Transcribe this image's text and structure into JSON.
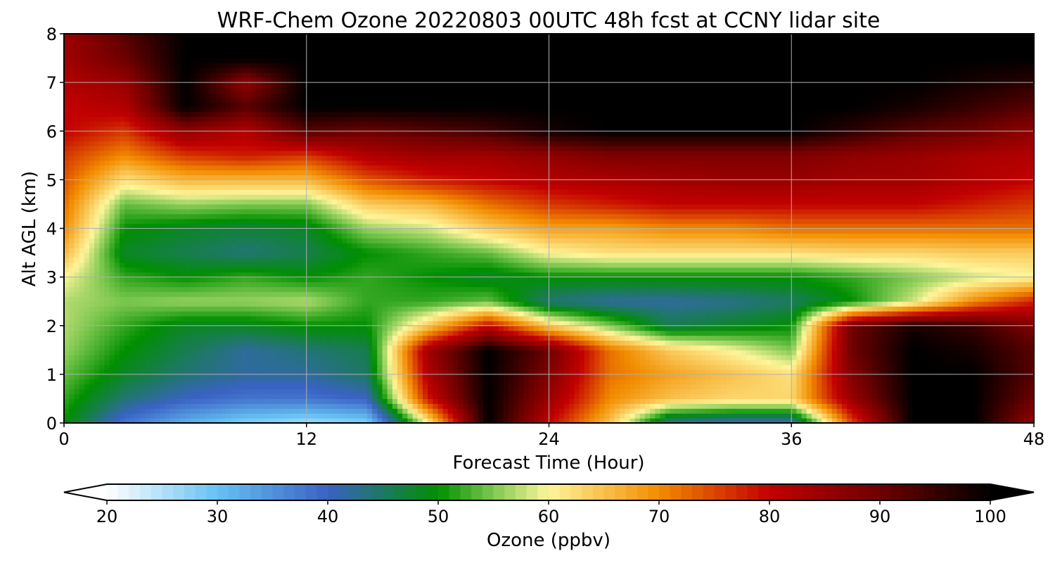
{
  "chart_data": {
    "type": "heatmap",
    "title": "WRF-Chem Ozone  20220803 00UTC 48h fcst at CCNY lidar site",
    "xlabel": "Forecast Time (Hour)",
    "ylabel": "Alt AGL (km)",
    "xlim": [
      0,
      48
    ],
    "ylim": [
      0,
      8
    ],
    "xticks": [
      0,
      12,
      24,
      36,
      48
    ],
    "yticks": [
      0,
      1,
      2,
      3,
      4,
      5,
      6,
      7,
      8
    ],
    "grid": true,
    "value_units": "ppbv",
    "x": [
      0,
      3,
      6,
      9,
      12,
      15,
      18,
      21,
      24,
      27,
      30,
      33,
      36,
      39,
      42,
      45,
      48
    ],
    "y": [
      0,
      0.5,
      1,
      1.5,
      2,
      2.5,
      3,
      3.5,
      4,
      4.5,
      5,
      5.5,
      6,
      6.5,
      7,
      7.5,
      8
    ],
    "z": [
      [
        50,
        38,
        32,
        28,
        26,
        28,
        60,
        100,
        80,
        65,
        42,
        40,
        40,
        75,
        100,
        100,
        85
      ],
      [
        52,
        44,
        40,
        38,
        38,
        40,
        78,
        100,
        85,
        70,
        65,
        63,
        63,
        85,
        100,
        100,
        90
      ],
      [
        54,
        48,
        44,
        42,
        42,
        45,
        82,
        100,
        88,
        72,
        68,
        65,
        62,
        88,
        100,
        100,
        92
      ],
      [
        56,
        50,
        46,
        42,
        44,
        46,
        84,
        100,
        90,
        72,
        64,
        60,
        55,
        90,
        100,
        98,
        92
      ],
      [
        57,
        52,
        48,
        48,
        50,
        50,
        64,
        80,
        64,
        55,
        46,
        48,
        50,
        90,
        98,
        95,
        88
      ],
      [
        57,
        55,
        56,
        56,
        57,
        52,
        52,
        54,
        44,
        42,
        42,
        43,
        45,
        50,
        58,
        70,
        78
      ],
      [
        60,
        52,
        50,
        52,
        50,
        52,
        50,
        48,
        50,
        50,
        50,
        50,
        50,
        52,
        55,
        58,
        60
      ],
      [
        66,
        48,
        46,
        44,
        46,
        50,
        52,
        54,
        60,
        62,
        62,
        62,
        62,
        63,
        63,
        64,
        64
      ],
      [
        70,
        50,
        48,
        47,
        48,
        56,
        58,
        64,
        68,
        68,
        70,
        70,
        72,
        72,
        72,
        72,
        72
      ],
      [
        72,
        54,
        56,
        55,
        55,
        64,
        66,
        72,
        76,
        78,
        80,
        80,
        80,
        80,
        80,
        78,
        76
      ],
      [
        74,
        62,
        66,
        66,
        66,
        74,
        78,
        80,
        82,
        83,
        84,
        85,
        85,
        84,
        84,
        82,
        80
      ],
      [
        76,
        70,
        76,
        78,
        76,
        82,
        84,
        84,
        86,
        88,
        88,
        88,
        88,
        86,
        85,
        83,
        82
      ],
      [
        80,
        76,
        86,
        82,
        92,
        90,
        92,
        94,
        98,
        100,
        100,
        100,
        100,
        96,
        92,
        90,
        86
      ],
      [
        80,
        82,
        100,
        92,
        100,
        100,
        100,
        100,
        100,
        100,
        100,
        100,
        100,
        100,
        98,
        95,
        92
      ],
      [
        82,
        85,
        100,
        86,
        100,
        100,
        100,
        100,
        100,
        100,
        100,
        100,
        100,
        100,
        100,
        98,
        96
      ],
      [
        84,
        90,
        100,
        100,
        100,
        100,
        100,
        100,
        100,
        100,
        100,
        100,
        100,
        100,
        100,
        100,
        100
      ],
      [
        84,
        92,
        100,
        100,
        100,
        100,
        100,
        100,
        100,
        100,
        100,
        100,
        100,
        100,
        100,
        100,
        100
      ]
    ],
    "colorbar": {
      "label": "Ozone  (ppbv)",
      "min": 20,
      "max": 100,
      "ticks": [
        20,
        30,
        40,
        50,
        60,
        70,
        80,
        90,
        100
      ],
      "extend": "both",
      "colormap": [
        [
          20,
          "#ffffff"
        ],
        [
          30,
          "#66c2f2"
        ],
        [
          40,
          "#3a62c4"
        ],
        [
          50,
          "#008f00"
        ],
        [
          55,
          "#7ec850"
        ],
        [
          60,
          "#fff59a"
        ],
        [
          70,
          "#f28c00"
        ],
        [
          80,
          "#c20000"
        ],
        [
          90,
          "#6e0000"
        ],
        [
          100,
          "#000000"
        ]
      ]
    }
  }
}
